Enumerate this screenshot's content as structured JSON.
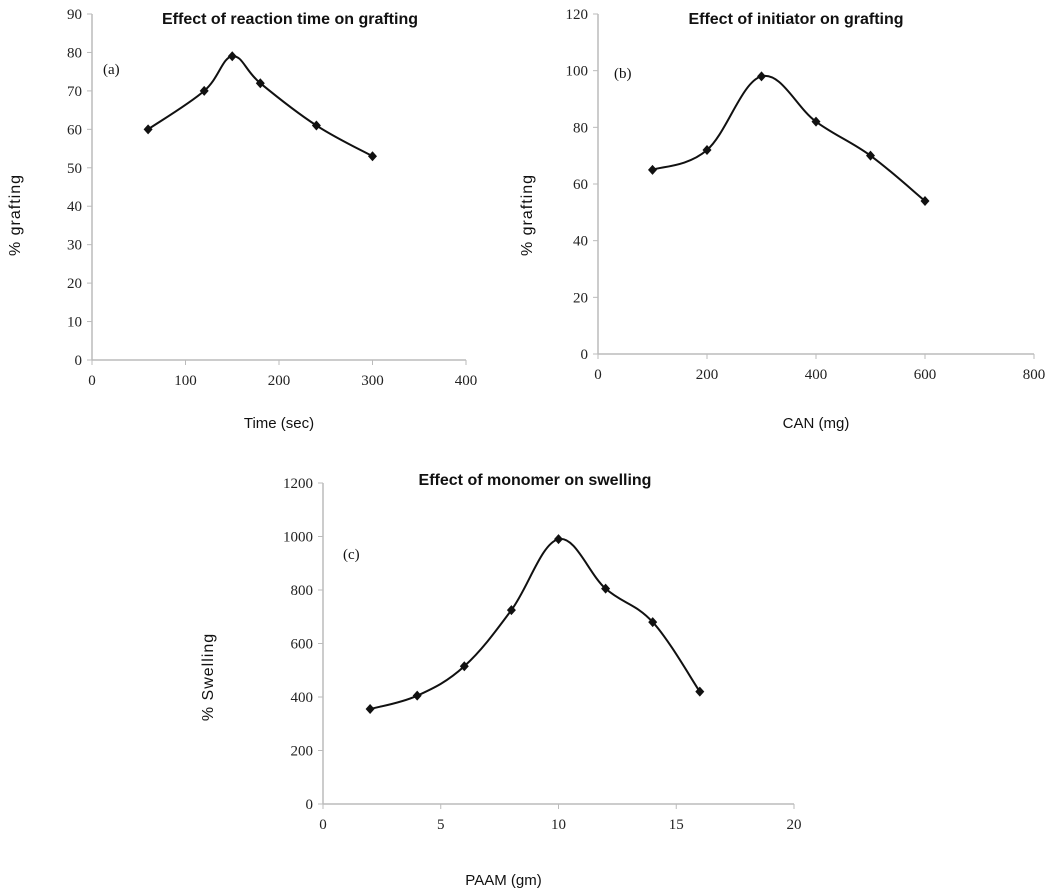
{
  "chart_data": [
    {
      "id": "a",
      "type": "line",
      "panel_label": "(a)",
      "title": "Effect of reaction time on grafting",
      "xlabel": "Time (sec)",
      "ylabel": "% grafting",
      "xlim": [
        0,
        400
      ],
      "ylim": [
        0,
        90
      ],
      "xticks": [
        0,
        100,
        200,
        300,
        400
      ],
      "yticks": [
        0,
        10,
        20,
        30,
        40,
        50,
        60,
        70,
        80,
        90
      ],
      "series": [
        {
          "name": "grafting",
          "x": [
            60,
            120,
            150,
            180,
            240,
            300
          ],
          "y": [
            60,
            70,
            79,
            72,
            61,
            53
          ]
        }
      ]
    },
    {
      "id": "b",
      "type": "line",
      "panel_label": "(b)",
      "title": "Effect of initiator on grafting",
      "xlabel": "CAN (mg)",
      "ylabel": "% grafting",
      "xlim": [
        0,
        800
      ],
      "ylim": [
        0,
        120
      ],
      "xticks": [
        0,
        200,
        400,
        600,
        800
      ],
      "yticks": [
        0,
        20,
        40,
        60,
        80,
        100,
        120
      ],
      "series": [
        {
          "name": "grafting",
          "x": [
            100,
            200,
            300,
            400,
            500,
            600
          ],
          "y": [
            65,
            72,
            98,
            82,
            70,
            54
          ]
        }
      ]
    },
    {
      "id": "c",
      "type": "line",
      "panel_label": "(c)",
      "title": "Effect of monomer on swelling",
      "xlabel": "PAAM (gm)",
      "ylabel": "% Swelling",
      "xlim": [
        0,
        20
      ],
      "ylim": [
        0,
        1200
      ],
      "xticks": [
        0,
        5,
        10,
        15,
        20
      ],
      "yticks": [
        0,
        200,
        400,
        600,
        800,
        1000,
        1200
      ],
      "series": [
        {
          "name": "swelling",
          "x": [
            2,
            4,
            6,
            8,
            10,
            12,
            14,
            16
          ],
          "y": [
            355,
            405,
            515,
            725,
            990,
            805,
            680,
            420
          ]
        }
      ]
    }
  ]
}
